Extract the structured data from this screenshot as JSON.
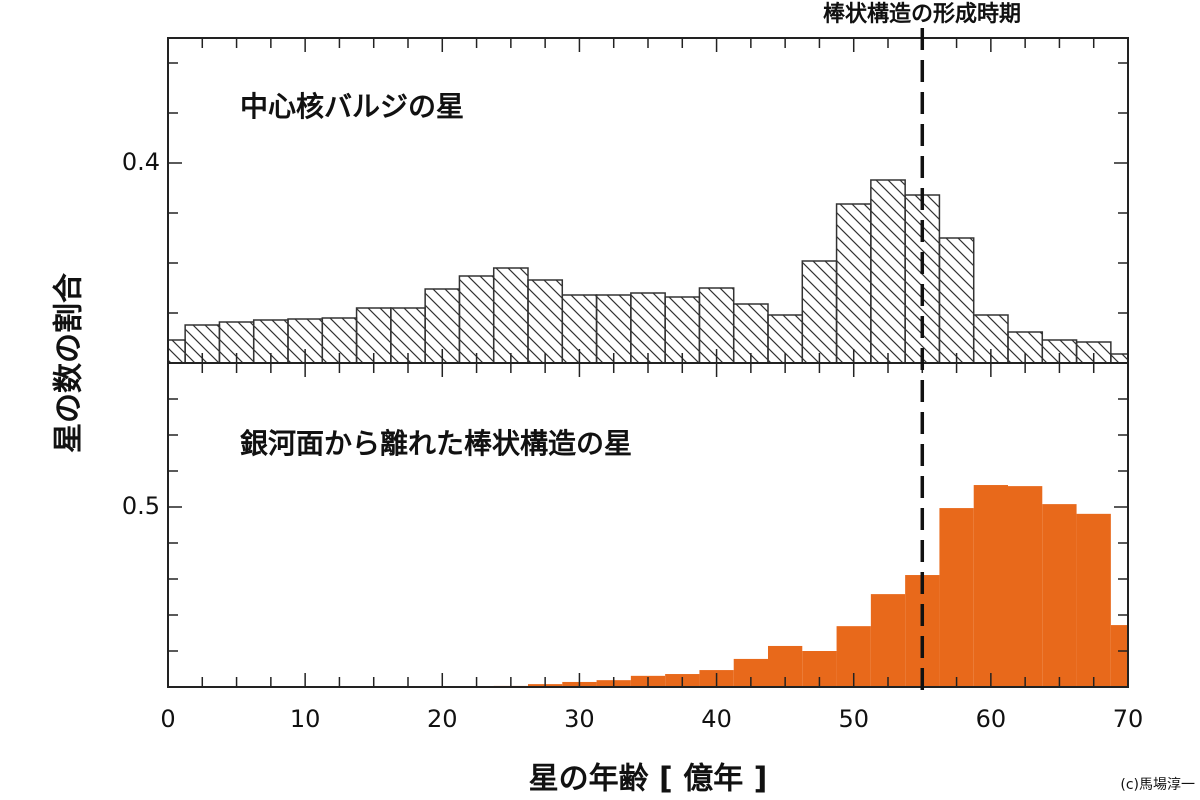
{
  "chart_data": [
    {
      "type": "histogram",
      "title": "中心核バルジの星",
      "fill": "hatch",
      "color": "#333333",
      "bins": [
        -1.25,
        1.25,
        3.75,
        6.25,
        8.75,
        11.25,
        13.75,
        16.25,
        18.75,
        21.25,
        23.75,
        26.25,
        28.75,
        31.25,
        33.75,
        36.25,
        38.75,
        41.25,
        43.75,
        46.25,
        48.75,
        51.25,
        53.75,
        56.25,
        58.75,
        61.25,
        63.75,
        66.25,
        68.75,
        71.25
      ],
      "values": [
        0.223,
        0.238,
        0.241,
        0.243,
        0.244,
        0.245,
        0.255,
        0.255,
        0.274,
        0.287,
        0.295,
        0.283,
        0.268,
        0.268,
        0.27,
        0.266,
        0.275,
        0.259,
        0.248,
        0.302,
        0.359,
        0.383,
        0.368,
        0.325,
        0.248,
        0.231,
        0.223,
        0.221,
        0.209
      ],
      "xlim": [
        0,
        70
      ],
      "ylim": [
        0.2,
        0.525
      ],
      "yticks": [
        0.4
      ],
      "yminorticks": [
        0.25,
        0.3,
        0.35,
        0.45,
        0.5
      ]
    },
    {
      "type": "histogram",
      "title": "銀河面から離れた棒状構造の星",
      "fill": "solid",
      "color": "#e8691b",
      "bins": [
        -1.25,
        1.25,
        3.75,
        6.25,
        8.75,
        11.25,
        13.75,
        16.25,
        18.75,
        21.25,
        23.75,
        26.25,
        28.75,
        31.25,
        33.75,
        36.25,
        38.75,
        41.25,
        43.75,
        46.25,
        48.75,
        51.25,
        53.75,
        56.25,
        58.75,
        61.25,
        63.75,
        66.25,
        68.75,
        71.25
      ],
      "values": [
        0,
        0,
        0,
        0,
        0,
        0,
        0,
        0,
        0,
        0,
        0.003,
        0.008,
        0.014,
        0.019,
        0.031,
        0.036,
        0.047,
        0.078,
        0.114,
        0.1,
        0.169,
        0.258,
        0.311,
        0.497,
        0.561,
        0.558,
        0.508,
        0.481,
        0.172
      ],
      "xlim": [
        0,
        70
      ],
      "ylim": [
        0,
        0.9
      ],
      "yticks": [
        0.5
      ],
      "yminorticks": [
        0.1,
        0.2,
        0.3,
        0.4,
        0.6,
        0.7,
        0.8
      ],
      "xticks": [
        0,
        10,
        20,
        30,
        40,
        50,
        60,
        70
      ],
      "xminorticks": [
        2.5,
        5,
        7.5,
        12.5,
        15,
        17.5,
        22.5,
        25,
        27.5,
        32.5,
        35,
        37.5,
        42.5,
        45,
        47.5,
        52.5,
        55,
        57.5,
        62.5,
        65,
        67.5
      ],
      "xlabel": "星の年齢 [ 億年 ]"
    }
  ],
  "ylabel": "星の数の割合",
  "annotation": {
    "text": "棒状構造の形成時期",
    "x": 55
  },
  "credit": "(c)馬場淳一"
}
